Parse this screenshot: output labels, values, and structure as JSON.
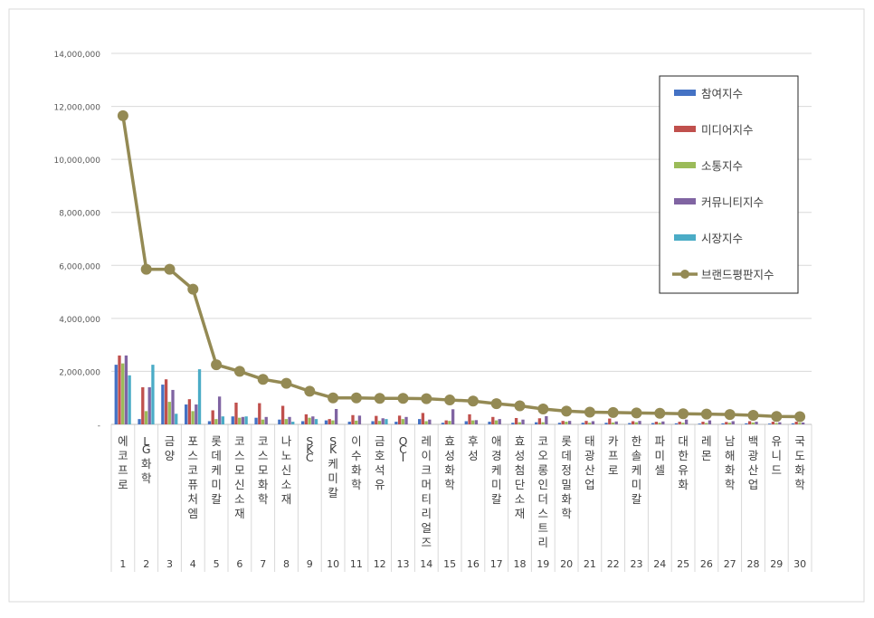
{
  "chart_data": {
    "type": "bar",
    "ylim": [
      0,
      14000000
    ],
    "ytick_labels": [
      "-",
      "2,000,000",
      "4,000,000",
      "6,000,000",
      "8,000,000",
      "10,000,000",
      "12,000,000",
      "14,000,000"
    ],
    "ytick_values": [
      0,
      2000000,
      4000000,
      6000000,
      8000000,
      10000000,
      12000000,
      14000000
    ],
    "grid": true,
    "legend_position": "right",
    "categories": [
      "에코프로",
      "LG화학",
      "금양",
      "포스코퓨처엠",
      "롯데케미칼",
      "코스모신소재",
      "코스모화학",
      "나노신소재",
      "SKC",
      "SK케미칼",
      "이수화학",
      "금호석유",
      "OCI",
      "레이크머티리얼즈",
      "효성화학",
      "후성",
      "애경케미칼",
      "효성첨단소재",
      "코오롱인더스트리",
      "롯데정밀화학",
      "태광산업",
      "카프로",
      "한솔케미칼",
      "파미셀",
      "대한유화",
      "레몬",
      "남해화학",
      "백광산업",
      "유니드",
      "국도화학"
    ],
    "ranks": [
      "1",
      "2",
      "3",
      "4",
      "5",
      "6",
      "7",
      "8",
      "9",
      "10",
      "11",
      "12",
      "13",
      "14",
      "15",
      "16",
      "17",
      "18",
      "19",
      "20",
      "21",
      "22",
      "23",
      "24",
      "25",
      "26",
      "27",
      "28",
      "29",
      "30"
    ],
    "series": [
      {
        "name": "참여지수",
        "kind": "bar",
        "color": "#4472c4",
        "values": [
          2250000,
          200000,
          1500000,
          750000,
          120000,
          300000,
          250000,
          180000,
          120000,
          150000,
          100000,
          120000,
          100000,
          200000,
          60000,
          120000,
          100000,
          60000,
          80000,
          60000,
          60000,
          60000,
          50000,
          50000,
          40000,
          30000,
          40000,
          40000,
          30000,
          40000
        ]
      },
      {
        "name": "미디어지수",
        "kind": "bar",
        "color": "#c0504d",
        "values": [
          2600000,
          1400000,
          1700000,
          950000,
          530000,
          820000,
          800000,
          700000,
          380000,
          200000,
          350000,
          320000,
          330000,
          430000,
          150000,
          380000,
          280000,
          240000,
          230000,
          130000,
          130000,
          220000,
          120000,
          100000,
          100000,
          100000,
          90000,
          120000,
          100000,
          100000
        ]
      },
      {
        "name": "소통지수",
        "kind": "bar",
        "color": "#9bbb59",
        "values": [
          2300000,
          500000,
          850000,
          500000,
          200000,
          250000,
          180000,
          200000,
          250000,
          150000,
          140000,
          130000,
          200000,
          120000,
          130000,
          150000,
          150000,
          80000,
          80000,
          100000,
          60000,
          70000,
          80000,
          60000,
          60000,
          50000,
          60000,
          70000,
          50000,
          60000
        ]
      },
      {
        "name": "커뮤니티지수",
        "kind": "bar",
        "color": "#8064a2",
        "values": [
          2600000,
          1400000,
          1300000,
          750000,
          1050000,
          280000,
          280000,
          280000,
          300000,
          580000,
          330000,
          230000,
          280000,
          180000,
          570000,
          160000,
          200000,
          180000,
          310000,
          130000,
          120000,
          110000,
          130000,
          110000,
          180000,
          150000,
          120000,
          100000,
          80000,
          70000
        ]
      },
      {
        "name": "시장지수",
        "kind": "bar",
        "color": "#4bacc6",
        "values": [
          1850000,
          2250000,
          400000,
          2080000,
          300000,
          300000,
          0,
          100000,
          200000,
          0,
          0,
          200000,
          0,
          0,
          0,
          0,
          0,
          0,
          0,
          0,
          0,
          0,
          0,
          0,
          0,
          0,
          0,
          0,
          0,
          0
        ]
      },
      {
        "name": "브랜드평판지수",
        "kind": "line",
        "color": "#948a54",
        "values": [
          11650000,
          5850000,
          5850000,
          5100000,
          2250000,
          2000000,
          1700000,
          1550000,
          1250000,
          1000000,
          1000000,
          980000,
          980000,
          970000,
          920000,
          880000,
          780000,
          700000,
          580000,
          500000,
          460000,
          450000,
          430000,
          420000,
          400000,
          390000,
          370000,
          340000,
          300000,
          290000
        ]
      }
    ]
  }
}
